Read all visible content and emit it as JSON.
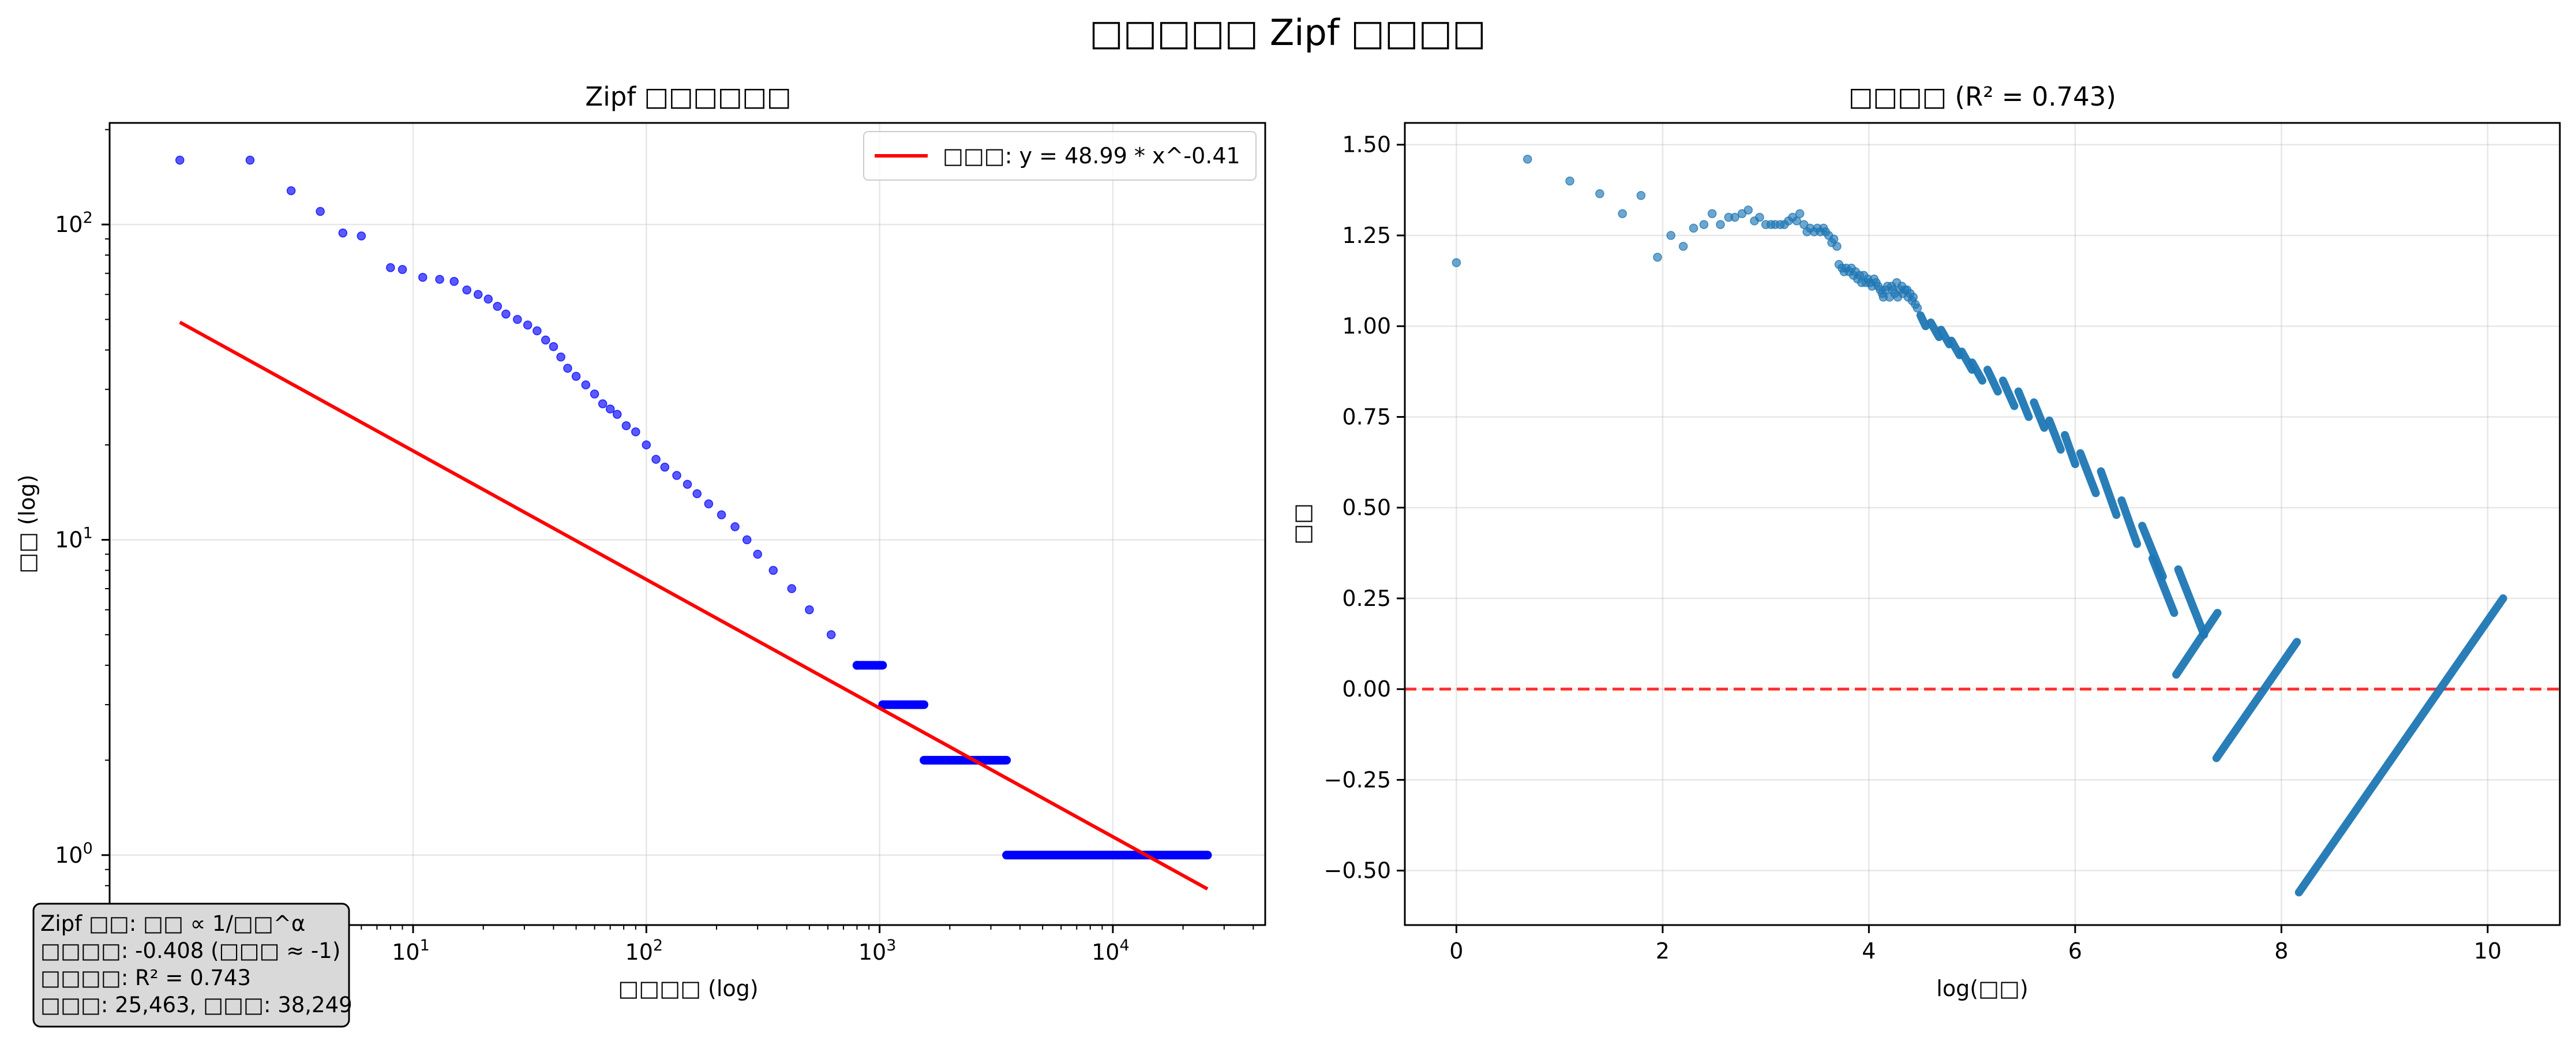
{
  "figure": {
    "title": "□□□□□ Zipf □□□□"
  },
  "chart_data": [
    {
      "type": "scatter",
      "title": "Zipf □□□□□□",
      "xlabel": "□□□□ (log)",
      "ylabel": "□□ (log)",
      "xscale": "log",
      "yscale": "log",
      "xlim": [
        0.5,
        45000
      ],
      "ylim": [
        0.6,
        210
      ],
      "x_ticks": [
        {
          "value": 10,
          "base": "10",
          "exp": "1"
        },
        {
          "value": 100,
          "base": "10",
          "exp": "2"
        },
        {
          "value": 1000,
          "base": "10",
          "exp": "3"
        },
        {
          "value": 10000,
          "base": "10",
          "exp": "4"
        }
      ],
      "y_ticks": [
        {
          "value": 1,
          "base": "10",
          "exp": "0"
        },
        {
          "value": 10,
          "base": "10",
          "exp": "1"
        },
        {
          "value": 100,
          "base": "10",
          "exp": "2"
        }
      ],
      "grid": true,
      "legend": {
        "position": "upper right",
        "entries": [
          "□□□: y = 48.99 * x^-0.41"
        ]
      },
      "series": [
        {
          "type": "scatter",
          "color": "#0000ff",
          "points": [
            [
              1,
              160
            ],
            [
              2,
              160
            ],
            [
              3,
              128
            ],
            [
              4,
              110
            ],
            [
              5,
              94
            ],
            [
              6,
              92
            ],
            [
              8,
              73
            ],
            [
              9,
              72
            ],
            [
              11,
              68
            ],
            [
              13,
              67
            ],
            [
              15,
              66
            ],
            [
              17,
              62
            ],
            [
              19,
              60
            ],
            [
              21,
              58
            ],
            [
              23,
              55
            ],
            [
              25,
              52
            ],
            [
              28,
              50
            ],
            [
              31,
              48
            ],
            [
              34,
              46
            ],
            [
              37,
              43
            ],
            [
              40,
              41
            ],
            [
              43,
              38
            ],
            [
              46,
              35
            ],
            [
              50,
              33
            ],
            [
              55,
              31
            ],
            [
              60,
              29
            ],
            [
              65,
              27
            ],
            [
              70,
              26
            ],
            [
              75,
              25
            ],
            [
              82,
              23
            ],
            [
              90,
              22
            ],
            [
              100,
              20
            ],
            [
              110,
              18
            ],
            [
              120,
              17
            ],
            [
              135,
              16
            ],
            [
              150,
              15
            ],
            [
              165,
              14
            ],
            [
              185,
              13
            ],
            [
              210,
              12
            ],
            [
              240,
              11
            ],
            [
              270,
              10
            ],
            [
              300,
              9
            ],
            [
              350,
              8
            ],
            [
              420,
              7
            ],
            [
              500,
              6
            ],
            [
              620,
              5
            ],
            [
              800,
              4
            ]
          ]
        },
        {
          "type": "steps",
          "color": "#0000ff",
          "segments": [
            {
              "y": 4,
              "x_start": 800,
              "x_end": 1030
            },
            {
              "y": 3,
              "x_start": 1030,
              "x_end": 1550
            },
            {
              "y": 2,
              "x_start": 1550,
              "x_end": 3500
            },
            {
              "y": 1,
              "x_start": 3500,
              "x_end": 25463
            }
          ]
        },
        {
          "type": "line",
          "name": "□□□: y = 48.99 * x^-0.41",
          "color": "#ff0000",
          "a": 48.99,
          "b": -0.408,
          "x_range": [
            1,
            25463
          ]
        }
      ],
      "annotation": [
        "Zipf □□: □□ ∝ 1/□□^α",
        "□□□□: -0.408 (□□□ ≈ -1)",
        "□□□□: R² = 0.743",
        "□□□: 25,463, □□□: 38,249"
      ]
    },
    {
      "type": "scatter",
      "title": "□□□□ (R² = 0.743)",
      "xlabel": "log(□□)",
      "ylabel": "□□",
      "xlim": [
        -0.5,
        10.7
      ],
      "ylim": [
        -0.65,
        1.56
      ],
      "x_ticks": [
        "0",
        "2",
        "4",
        "6",
        "8",
        "10"
      ],
      "y_ticks": [
        "−0.50",
        "−0.25",
        "0.00",
        "0.25",
        "0.50",
        "0.75",
        "1.00",
        "1.25",
        "1.50"
      ],
      "grid": true,
      "reference_line": {
        "y": 0,
        "style": "dashed",
        "color": "#ff0000"
      },
      "points_color": "#1f77b4",
      "points": [
        [
          0,
          1.175
        ],
        [
          0.69,
          1.46
        ],
        [
          1.1,
          1.4
        ],
        [
          1.39,
          1.365
        ],
        [
          1.61,
          1.31
        ],
        [
          1.79,
          1.36
        ],
        [
          1.95,
          1.19
        ],
        [
          2.08,
          1.25
        ],
        [
          2.2,
          1.22
        ],
        [
          2.3,
          1.27
        ],
        [
          2.4,
          1.28
        ],
        [
          2.48,
          1.31
        ],
        [
          2.56,
          1.28
        ],
        [
          2.64,
          1.3
        ],
        [
          2.7,
          1.3
        ],
        [
          2.77,
          1.31
        ],
        [
          2.83,
          1.32
        ],
        [
          2.89,
          1.29
        ],
        [
          2.94,
          1.3
        ],
        [
          3.0,
          1.28
        ],
        [
          3.05,
          1.28
        ],
        [
          3.09,
          1.28
        ],
        [
          3.14,
          1.28
        ],
        [
          3.18,
          1.28
        ],
        [
          3.22,
          1.29
        ],
        [
          3.26,
          1.3
        ],
        [
          3.3,
          1.29
        ],
        [
          3.33,
          1.31
        ],
        [
          3.37,
          1.28
        ],
        [
          3.4,
          1.26
        ],
        [
          3.43,
          1.27
        ],
        [
          3.47,
          1.26
        ],
        [
          3.5,
          1.27
        ],
        [
          3.53,
          1.26
        ],
        [
          3.56,
          1.27
        ],
        [
          3.58,
          1.26
        ],
        [
          3.61,
          1.25
        ],
        [
          3.64,
          1.23
        ],
        [
          3.66,
          1.24
        ],
        [
          3.69,
          1.22
        ],
        [
          3.71,
          1.17
        ],
        [
          3.74,
          1.16
        ],
        [
          3.76,
          1.15
        ],
        [
          3.78,
          1.16
        ],
        [
          3.81,
          1.15
        ],
        [
          3.83,
          1.16
        ],
        [
          3.85,
          1.14
        ],
        [
          3.87,
          1.15
        ],
        [
          3.89,
          1.13
        ],
        [
          3.91,
          1.14
        ],
        [
          3.93,
          1.12
        ],
        [
          3.95,
          1.14
        ],
        [
          3.97,
          1.12
        ],
        [
          3.99,
          1.13
        ],
        [
          4.01,
          1.12
        ],
        [
          4.03,
          1.11
        ],
        [
          4.05,
          1.13
        ],
        [
          4.07,
          1.12
        ],
        [
          4.09,
          1.11
        ],
        [
          4.11,
          1.1
        ],
        [
          4.13,
          1.09
        ],
        [
          4.14,
          1.08
        ],
        [
          4.16,
          1.1
        ],
        [
          4.18,
          1.11
        ],
        [
          4.2,
          1.08
        ],
        [
          4.22,
          1.11
        ],
        [
          4.23,
          1.1
        ],
        [
          4.25,
          1.09
        ],
        [
          4.27,
          1.12
        ],
        [
          4.28,
          1.08
        ],
        [
          4.3,
          1.1
        ],
        [
          4.32,
          1.11
        ],
        [
          4.33,
          1.09
        ],
        [
          4.35,
          1.1
        ],
        [
          4.37,
          1.1
        ],
        [
          4.38,
          1.08
        ],
        [
          4.4,
          1.09
        ],
        [
          4.42,
          1.07
        ],
        [
          4.43,
          1.08
        ],
        [
          4.45,
          1.06
        ],
        [
          4.47,
          1.05
        ]
      ],
      "bands": [
        {
          "x_start": 4.5,
          "y_start": 1.03,
          "x_end": 4.55,
          "y_end": 1.0
        },
        {
          "x_start": 4.6,
          "y_start": 1.01,
          "x_end": 4.68,
          "y_end": 0.97
        },
        {
          "x_start": 4.7,
          "y_start": 0.99,
          "x_end": 4.78,
          "y_end": 0.95
        },
        {
          "x_start": 4.8,
          "y_start": 0.96,
          "x_end": 4.88,
          "y_end": 0.92
        },
        {
          "x_start": 4.9,
          "y_start": 0.93,
          "x_end": 5.0,
          "y_end": 0.88
        },
        {
          "x_start": 5.0,
          "y_start": 0.9,
          "x_end": 5.1,
          "y_end": 0.85
        },
        {
          "x_start": 5.15,
          "y_start": 0.88,
          "x_end": 5.25,
          "y_end": 0.82
        },
        {
          "x_start": 5.3,
          "y_start": 0.85,
          "x_end": 5.41,
          "y_end": 0.78
        },
        {
          "x_start": 5.45,
          "y_start": 0.82,
          "x_end": 5.55,
          "y_end": 0.75
        },
        {
          "x_start": 5.6,
          "y_start": 0.79,
          "x_end": 5.7,
          "y_end": 0.72
        },
        {
          "x_start": 5.75,
          "y_start": 0.74,
          "x_end": 5.86,
          "y_end": 0.66
        },
        {
          "x_start": 5.9,
          "y_start": 0.7,
          "x_end": 6.0,
          "y_end": 0.62
        },
        {
          "x_start": 6.05,
          "y_start": 0.65,
          "x_end": 6.2,
          "y_end": 0.54
        },
        {
          "x_start": 6.25,
          "y_start": 0.6,
          "x_end": 6.4,
          "y_end": 0.48
        },
        {
          "x_start": 6.45,
          "y_start": 0.52,
          "x_end": 6.6,
          "y_end": 0.4
        },
        {
          "x_start": 6.65,
          "y_start": 0.45,
          "x_end": 6.85,
          "y_end": 0.31
        },
        {
          "x_start": 6.75,
          "y_start": 0.36,
          "x_end": 6.96,
          "y_end": 0.21
        },
        {
          "x_start": 7.0,
          "y_start": 0.33,
          "x_end": 7.25,
          "y_end": 0.15
        },
        {
          "x_start": 6.98,
          "y_start": 0.04,
          "x_end": 7.38,
          "y_end": 0.21
        },
        {
          "x_start": 7.37,
          "y_start": -0.19,
          "x_end": 8.15,
          "y_end": 0.13
        },
        {
          "x_start": 8.17,
          "y_start": -0.56,
          "x_end": 10.15,
          "y_end": 0.25
        }
      ]
    }
  ]
}
